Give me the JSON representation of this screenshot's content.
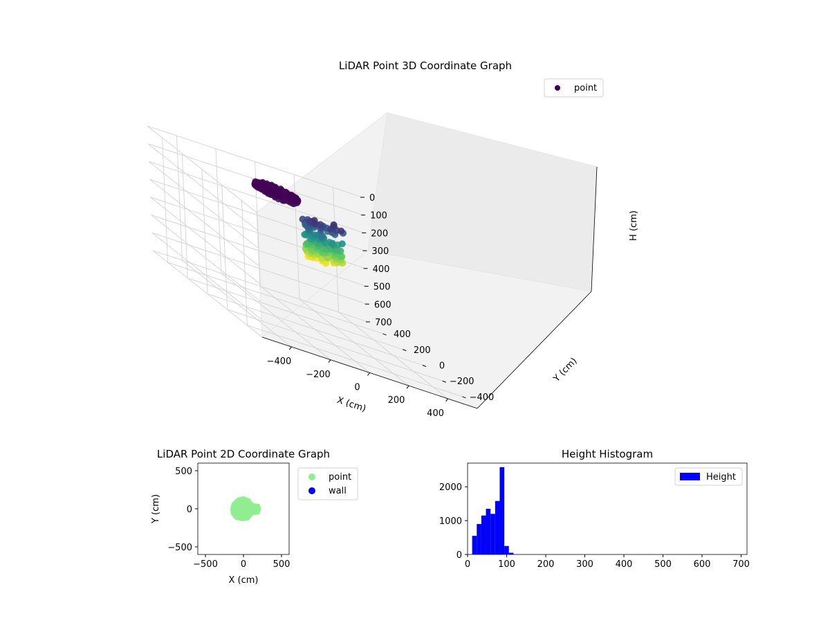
{
  "chart_data": [
    {
      "type": "scatter",
      "title": "LiDAR Point 3D Coordinate Graph",
      "xlabel": "X (cm)",
      "ylabel": "Y (cm)",
      "zlabel": "H (cm)",
      "xticks": [
        -400,
        -200,
        0,
        200,
        400
      ],
      "yticks": [
        -400,
        -200,
        0,
        200,
        400
      ],
      "zticks": [
        0,
        100,
        200,
        300,
        400,
        500,
        600,
        700
      ],
      "xlim": [
        -550,
        550
      ],
      "ylim": [
        -550,
        550
      ],
      "zlim": [
        700,
        0
      ],
      "z_inverted": true,
      "grid": true,
      "colormap": "viridis",
      "legend": {
        "placement": "top-right",
        "entries": [
          {
            "label": "point",
            "color": "#440154"
          }
        ]
      },
      "series": [
        {
          "name": "point",
          "ring_h": [
            40,
            60
          ],
          "ring_radius": [
            70,
            100
          ],
          "body_x": [
            0,
            60,
            140
          ],
          "body_y": [
            0,
            0,
            30
          ],
          "body_h_range": [
            80,
            300
          ]
        }
      ]
    },
    {
      "type": "scatter",
      "title": "LiDAR Point 2D Coordinate Graph",
      "xlabel": "X (cm)",
      "ylabel": "Y (cm)",
      "xticks": [
        -500,
        0,
        500
      ],
      "yticks": [
        -500,
        0,
        500
      ],
      "xlim": [
        -600,
        600
      ],
      "ylim": [
        -600,
        600
      ],
      "legend": {
        "placement": "outside-right",
        "entries": [
          {
            "label": "point",
            "color": "#90ee90"
          },
          {
            "label": "wall",
            "color": "#0000ff"
          }
        ]
      },
      "series": [
        {
          "name": "point",
          "color": "#90ee90",
          "blob": [
            [
              -160,
              0
            ],
            [
              -140,
              70
            ],
            [
              -80,
              130
            ],
            [
              0,
              150
            ],
            [
              80,
              120
            ],
            [
              120,
              60
            ],
            [
              200,
              50
            ],
            [
              220,
              0
            ],
            [
              200,
              -60
            ],
            [
              120,
              -70
            ],
            [
              60,
              -140
            ],
            [
              -20,
              -150
            ],
            [
              -100,
              -130
            ],
            [
              -150,
              -70
            ]
          ]
        },
        {
          "name": "wall",
          "color": "#0000ff",
          "points": []
        }
      ]
    },
    {
      "type": "bar",
      "title": "Height Histogram",
      "xlabel": "",
      "ylabel": "",
      "xticks": [
        0,
        100,
        200,
        300,
        400,
        500,
        600,
        700
      ],
      "yticks": [
        0,
        1000,
        2000
      ],
      "xlim": [
        0,
        715
      ],
      "ylim": [
        0,
        2700
      ],
      "color": "#0000ff",
      "legend": {
        "placement": "top-right",
        "entries": [
          {
            "label": "Height",
            "color": "#0000ff"
          }
        ]
      },
      "bin_edges": [
        0,
        11.75,
        23.5,
        35.25,
        47,
        58.75,
        70.5,
        82.25,
        94,
        105.75,
        117.5
      ],
      "counts": [
        0,
        550,
        900,
        1150,
        1350,
        1200,
        1580,
        2580,
        250,
        50
      ]
    }
  ]
}
